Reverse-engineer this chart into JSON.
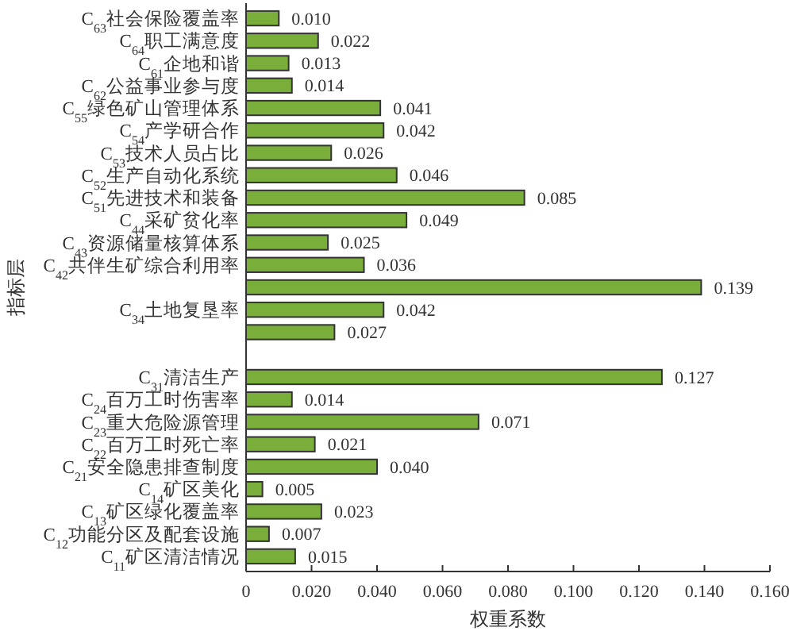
{
  "chart_data": {
    "type": "bar",
    "orientation": "horizontal",
    "xlabel": "权重系数",
    "ylabel": "指标层",
    "categories": [
      "C$_{63}$社会保险覆盖率",
      "C$_{64}$职工满意度",
      "C$_{61}$企地和谐",
      "C$_{62}$公益事业参与度",
      "C$_{55}$绿色矿山管理体系",
      "C$_{54}$产学研合作",
      "C$_{53}$技术人员占比",
      "C$_{52}$生产自动化系统",
      "C$_{51}$先进技术和装备",
      "C$_{44}$采矿贫化率",
      "C$_{43}$资源储量核算体系",
      "C$_{42}$共伴生矿综合利用率",
      null,
      "C$_{34}$土地复垦率",
      null,
      null,
      "C$_{31}$清洁生产",
      "C$_{24}$百万工时伤害率",
      "C$_{23}$重大危险源管理",
      "C$_{22}$百万工时死亡率",
      "C$_{21}$安全隐患排查制度",
      "C$_{14}$矿区美化",
      "C$_{13}$矿区绿化覆盖率",
      "C$_{12}$功能分区及配套设施",
      "C$_{11}$矿区清洁情况"
    ],
    "values": [
      0.01,
      0.022,
      0.013,
      0.014,
      0.041,
      0.042,
      0.026,
      0.046,
      0.085,
      0.049,
      0.025,
      0.036,
      0.139,
      0.042,
      0.027,
      null,
      0.127,
      0.014,
      0.071,
      0.021,
      0.04,
      0.005,
      0.023,
      0.007,
      0.015
    ],
    "value_labels": [
      "0.010",
      "0.022",
      "0.013",
      "0.014",
      "0.041",
      "0.042",
      "0.026",
      "0.046",
      "0.085",
      "0.049",
      "0.025",
      "0.036",
      "0.139",
      "0.042",
      "0.027",
      null,
      "0.127",
      "0.014",
      "0.071",
      "0.021",
      "0.040",
      "0.005",
      "0.023",
      "0.007",
      "0.015"
    ],
    "color": "#7aae3a",
    "xlim": [
      0,
      0.16
    ],
    "xticks": [
      0,
      {
        "value": 0.02,
        "label": "0.020"
      },
      {
        "value": 0.04,
        "label": "0.040"
      },
      {
        "value": 0.06,
        "label": "0.060"
      },
      {
        "value": 0.08,
        "label": "0.080"
      },
      {
        "value": 0.1,
        "label": "0.100"
      },
      {
        "value": 0.12,
        "label": "0.120"
      },
      {
        "value": 0.14,
        "label": "0.140"
      },
      {
        "value": 0.16,
        "label": "0.160"
      }
    ],
    "grid": false
  }
}
